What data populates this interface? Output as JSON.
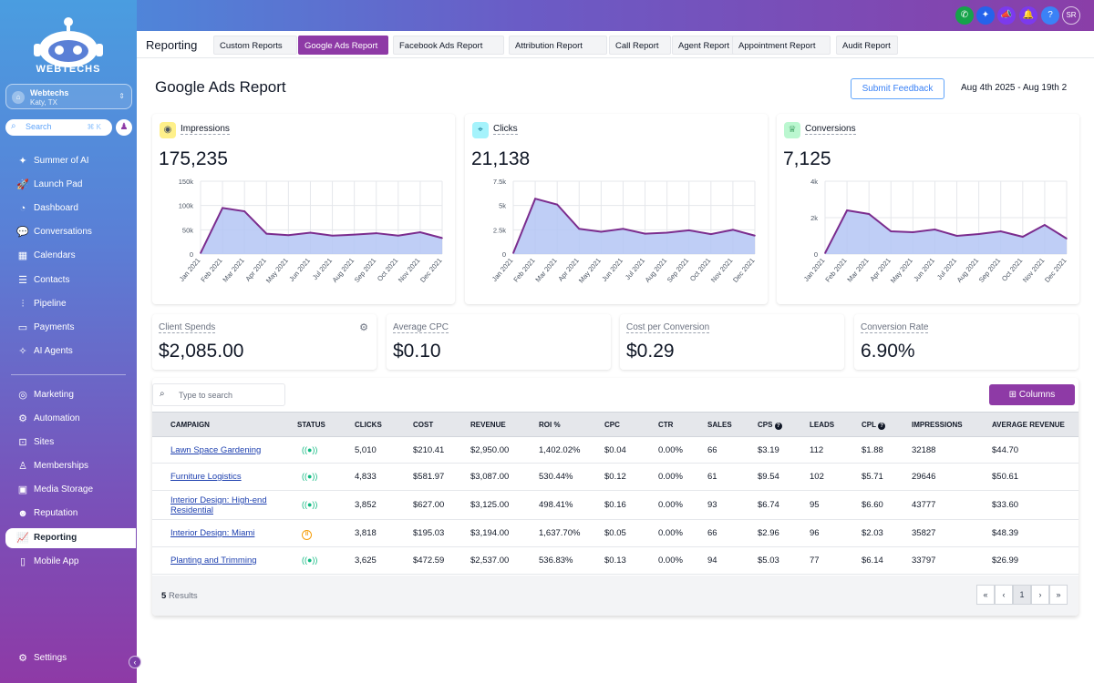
{
  "sidebar": {
    "logo_text": "WEBTECHS",
    "location": {
      "name": "Webtechs",
      "sub": "Katy, TX"
    },
    "search": {
      "placeholder": "Search",
      "shortcut": "⌘ K"
    },
    "items": [
      {
        "label": "Summer of AI",
        "icon": "sparkle-icon",
        "glyph": "✦",
        "active": false
      },
      {
        "label": "Launch Pad",
        "icon": "rocket-icon",
        "glyph": "🚀",
        "active": false
      },
      {
        "label": "Dashboard",
        "icon": "gauge-icon",
        "glyph": "◔",
        "active": false
      },
      {
        "label": "Conversations",
        "icon": "chat-icon",
        "glyph": "💬",
        "active": false
      },
      {
        "label": "Calendars",
        "icon": "calendar-icon",
        "glyph": "▦",
        "active": false
      },
      {
        "label": "Contacts",
        "icon": "contacts-icon",
        "glyph": "☰",
        "active": false
      },
      {
        "label": "Pipeline",
        "icon": "funnel-icon",
        "glyph": "⫶",
        "active": false
      },
      {
        "label": "Payments",
        "icon": "wallet-icon",
        "glyph": "▭",
        "active": false
      },
      {
        "label": "AI Agents",
        "icon": "ai-icon",
        "glyph": "✧",
        "active": false
      },
      {
        "label": "Marketing",
        "icon": "megaphone-icon",
        "glyph": "◎",
        "active": false
      },
      {
        "label": "Automation",
        "icon": "automation-icon",
        "glyph": "⚙",
        "active": false
      },
      {
        "label": "Sites",
        "icon": "sites-icon",
        "glyph": "⊡",
        "active": false
      },
      {
        "label": "Memberships",
        "icon": "membership-icon",
        "glyph": "♙",
        "active": false
      },
      {
        "label": "Media Storage",
        "icon": "image-icon",
        "glyph": "▣",
        "active": false
      },
      {
        "label": "Reputation",
        "icon": "reputation-icon",
        "glyph": "☻",
        "active": false
      },
      {
        "label": "Reporting",
        "icon": "chart-icon",
        "glyph": "📈",
        "active": true
      },
      {
        "label": "Mobile App",
        "icon": "mobile-icon",
        "glyph": "▯",
        "active": false
      }
    ],
    "settings_label": "Settings"
  },
  "topbar": {
    "initials": "SR",
    "icons": [
      {
        "name": "phone-icon",
        "glyph": "✆",
        "color": "#16a34a"
      },
      {
        "name": "magic-icon",
        "glyph": "✦",
        "color": "#2563eb"
      },
      {
        "name": "announcement-icon",
        "glyph": "📣",
        "color": "#7c3aed"
      },
      {
        "name": "bell-icon",
        "glyph": "🔔",
        "color": "#7c3aed"
      },
      {
        "name": "help-icon",
        "glyph": "?",
        "color": "#3b82f6"
      }
    ]
  },
  "tabs": {
    "title": "Reporting",
    "items": [
      {
        "label": "Custom Reports",
        "active": false
      },
      {
        "label": "Google Ads Report",
        "active": true
      },
      {
        "label": "Facebook Ads Report",
        "active": false
      },
      {
        "label": "Attribution Report",
        "active": false
      },
      {
        "label": "Call Report",
        "active": false
      },
      {
        "label": "Agent Report",
        "active": false
      },
      {
        "label": "Appointment Report",
        "active": false
      },
      {
        "label": "Audit Report",
        "active": false
      }
    ]
  },
  "header": {
    "title": "Google Ads Report",
    "feedback_label": "Submit Feedback",
    "date_range": "Aug 4th 2025 - Aug 19th 2"
  },
  "metrics": [
    {
      "label": "Impressions",
      "value": "175,235",
      "icon": "eye-icon",
      "glyph": "◉",
      "icon_bg": "#fef08a",
      "icon_color": "#4b5563"
    },
    {
      "label": "Clicks",
      "value": "21,138",
      "icon": "cursor-click-icon",
      "glyph": "⌖",
      "icon_bg": "#a5f3fc",
      "icon_color": "#0e7490"
    },
    {
      "label": "Conversions",
      "value": "7,125",
      "icon": "trophy-icon",
      "glyph": "♕",
      "icon_bg": "#bbf7d0",
      "icon_color": "#15803d"
    }
  ],
  "chart_data": [
    {
      "type": "area",
      "title": "Impressions",
      "x": [
        "Jan 2021",
        "Feb 2021",
        "Mar 2021",
        "Apr 2021",
        "May 2021",
        "Jun 2021",
        "Jul 2021",
        "Aug 2021",
        "Sep 2021",
        "Oct 2021",
        "Nov 2021",
        "Dec 2021"
      ],
      "y_ticks": [
        "150k",
        "100k",
        "50k",
        "0"
      ],
      "ylim": [
        0,
        150000
      ],
      "values": [
        2000,
        95000,
        88000,
        42000,
        39000,
        44000,
        38000,
        40000,
        43000,
        38000,
        45000,
        33000
      ]
    },
    {
      "type": "area",
      "title": "Clicks",
      "x": [
        "Jan 2021",
        "Feb 2021",
        "Mar 2021",
        "Apr 2021",
        "May 2021",
        "Jun 2021",
        "Jul 2021",
        "Aug 2021",
        "Sep 2021",
        "Oct 2021",
        "Nov 2021",
        "Dec 2021"
      ],
      "y_ticks": [
        "7.5k",
        "5k",
        "2.5k",
        "0"
      ],
      "ylim": [
        0,
        7500
      ],
      "values": [
        100,
        5700,
        5100,
        2600,
        2300,
        2600,
        2100,
        2200,
        2450,
        2050,
        2500,
        1900
      ]
    },
    {
      "type": "area",
      "title": "Conversions",
      "x": [
        "Jan 2021",
        "Feb 2021",
        "Mar 2021",
        "Apr 2021",
        "May 2021",
        "Jun 2021",
        "Jul 2021",
        "Aug 2021",
        "Sep 2021",
        "Oct 2021",
        "Nov 2021",
        "Dec 2021"
      ],
      "y_ticks": [
        "4k",
        "2k",
        "0"
      ],
      "ylim": [
        0,
        4000
      ],
      "values": [
        50,
        2400,
        2200,
        1250,
        1200,
        1350,
        1000,
        1100,
        1250,
        950,
        1600,
        850
      ]
    }
  ],
  "stats": [
    {
      "label": "Client Spends",
      "value": "$2,085.00",
      "has_gear": true
    },
    {
      "label": "Average CPC",
      "value": "$0.10",
      "has_gear": false
    },
    {
      "label": "Cost per Conversion",
      "value": "$0.29",
      "has_gear": false
    },
    {
      "label": "Conversion Rate",
      "value": "6.90%",
      "has_gear": false
    }
  ],
  "table": {
    "search_placeholder": "Type to search",
    "columns_label": "Columns",
    "headers": [
      "CAMPAIGN",
      "STATUS",
      "CLICKS",
      "COST",
      "REVENUE",
      "ROI %",
      "CPC",
      "CTR",
      "SALES",
      "CPS",
      "LEADS",
      "CPL",
      "IMPRESSIONS",
      "AVERAGE REVENUE"
    ],
    "rows": [
      {
        "campaign": "Lawn Space Gardening",
        "status": "live",
        "clicks": "5,010",
        "cost": "$210.41",
        "revenue": "$2,950.00",
        "roi": "1,402.02%",
        "cpc": "$0.04",
        "ctr": "0.00%",
        "sales": "66",
        "cps": "$3.19",
        "leads": "112",
        "cpl": "$1.88",
        "impressions": "32188",
        "avg_revenue": "$44.70"
      },
      {
        "campaign": "Furniture Logistics",
        "status": "live",
        "clicks": "4,833",
        "cost": "$581.97",
        "revenue": "$3,087.00",
        "roi": "530.44%",
        "cpc": "$0.12",
        "ctr": "0.00%",
        "sales": "61",
        "cps": "$9.54",
        "leads": "102",
        "cpl": "$5.71",
        "impressions": "29646",
        "avg_revenue": "$50.61"
      },
      {
        "campaign": "Interior Design: High-end Residential",
        "status": "live",
        "clicks": "3,852",
        "cost": "$627.00",
        "revenue": "$3,125.00",
        "roi": "498.41%",
        "cpc": "$0.16",
        "ctr": "0.00%",
        "sales": "93",
        "cps": "$6.74",
        "leads": "95",
        "cpl": "$6.60",
        "impressions": "43777",
        "avg_revenue": "$33.60"
      },
      {
        "campaign": "Interior Design: Miami",
        "status": "paused",
        "clicks": "3,818",
        "cost": "$195.03",
        "revenue": "$3,194.00",
        "roi": "1,637.70%",
        "cpc": "$0.05",
        "ctr": "0.00%",
        "sales": "66",
        "cps": "$2.96",
        "leads": "96",
        "cpl": "$2.03",
        "impressions": "35827",
        "avg_revenue": "$48.39"
      },
      {
        "campaign": "Planting and Trimming",
        "status": "live",
        "clicks": "3,625",
        "cost": "$472.59",
        "revenue": "$2,537.00",
        "roi": "536.83%",
        "cpc": "$0.13",
        "ctr": "0.00%",
        "sales": "94",
        "cps": "$5.03",
        "leads": "77",
        "cpl": "$6.14",
        "impressions": "33797",
        "avg_revenue": "$26.99"
      }
    ],
    "results_count": "5",
    "results_label": "Results",
    "pager": [
      "«",
      "‹",
      "1",
      "›",
      "»"
    ],
    "current_page": "1"
  },
  "colors": {
    "accent": "#8e3aa6",
    "chart_line": "#7b2d8e",
    "chart_fill": "#b4c6f5",
    "link": "#1e40af"
  }
}
